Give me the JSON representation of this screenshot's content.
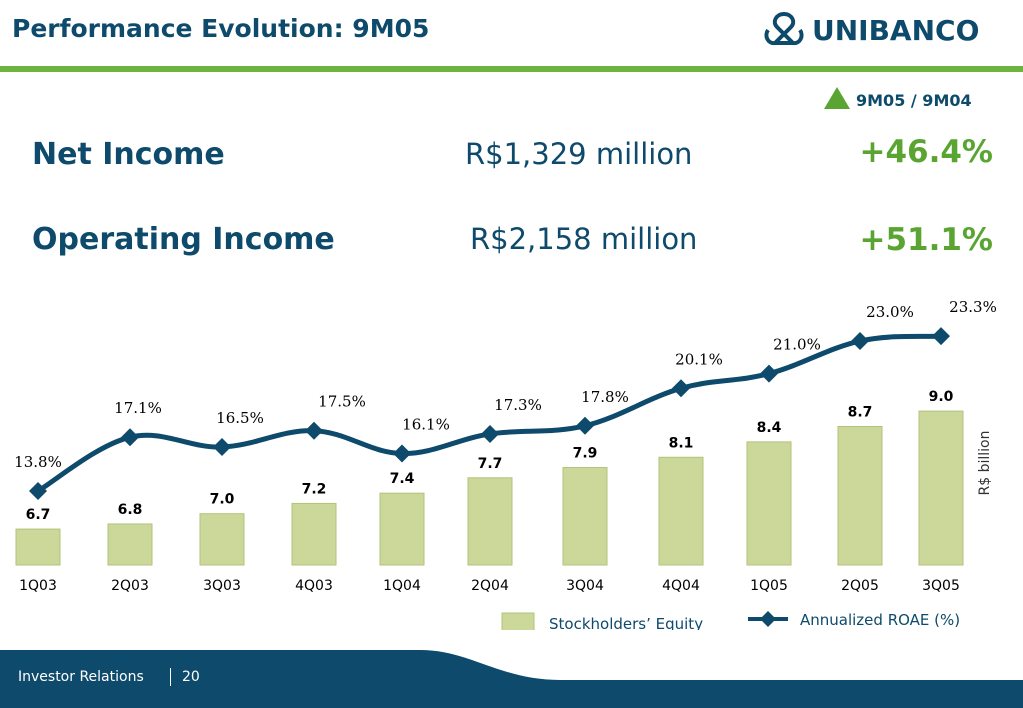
{
  "header": {
    "title": "Performance Evolution: 9M05",
    "brand": "UNIBANCO"
  },
  "comparison": {
    "label": "9M05 / 9M04"
  },
  "metrics": [
    {
      "name": "Net Income",
      "value": "R$1,329 million",
      "growth": "+46.4%"
    },
    {
      "name": "Operating Income",
      "value": "R$2,158 million",
      "growth": "+51.1%"
    }
  ],
  "chart_data": {
    "type": "bar",
    "categories": [
      "1Q03",
      "2Q03",
      "3Q03",
      "4Q03",
      "1Q04",
      "2Q04",
      "3Q04",
      "4Q04",
      "1Q05",
      "2Q05",
      "3Q05"
    ],
    "series": [
      {
        "name": "Stockholders’ Equity",
        "type": "bar",
        "values": [
          6.7,
          6.8,
          7.0,
          7.2,
          7.4,
          7.7,
          7.9,
          8.1,
          8.4,
          8.7,
          9.0
        ],
        "labels": [
          "6.7",
          "6.8",
          "7.0",
          "7.2",
          "7.4",
          "7.7",
          "7.9",
          "8.1",
          "8.4",
          "8.7",
          "9.0"
        ]
      },
      {
        "name": "Annualized ROAE (%)",
        "type": "line",
        "values": [
          13.8,
          17.1,
          16.5,
          17.5,
          16.1,
          17.3,
          17.8,
          20.1,
          21.0,
          23.0,
          23.3
        ],
        "labels": [
          "13.8%",
          "17.1%",
          "16.5%",
          "17.5%",
          "16.1%",
          "17.3%",
          "17.8%",
          "20.1%",
          "21.0%",
          "23.0%",
          "23.3%"
        ]
      }
    ],
    "ylabel": "R$ billion",
    "legend_position": "bottom",
    "colors": {
      "bar": "#ccd89a",
      "bar_border": "#b2c27a",
      "line": "#0e4a6b",
      "text": "#0e4a6b"
    }
  },
  "footer": {
    "label": "Investor Relations",
    "page": "20"
  }
}
